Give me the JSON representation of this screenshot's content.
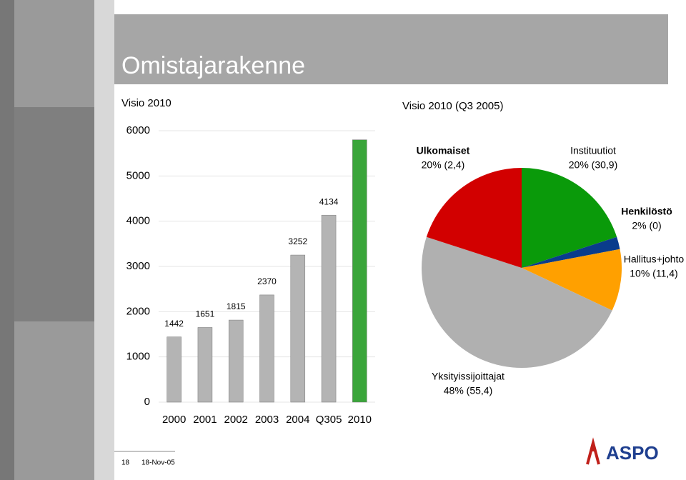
{
  "title": "Omistajarakenne",
  "chart_data": [
    {
      "type": "bar",
      "title": "Visio 2010",
      "categories": [
        "2000",
        "2001",
        "2002",
        "2003",
        "2004",
        "Q305",
        "2010"
      ],
      "values": [
        1442,
        1651,
        1815,
        2370,
        3252,
        4134,
        5800
      ],
      "value_labels": [
        "1442",
        "1651",
        "1815",
        "2370",
        "3252",
        "4134",
        null
      ],
      "colors": [
        "#b4b4b4",
        "#b4b4b4",
        "#b4b4b4",
        "#b4b4b4",
        "#b4b4b4",
        "#b4b4b4",
        "#3aa53a"
      ],
      "ylim": [
        0,
        6000
      ],
      "yticks": [
        0,
        1000,
        2000,
        3000,
        4000,
        5000,
        6000
      ],
      "grid": true
    },
    {
      "type": "pie",
      "title": "Visio 2010 (Q3 2005)",
      "categories": [
        "Instituutiot",
        "Henkilöstö",
        "Hallitus+johto",
        "Yksityissijoittajat",
        "Ulkomaiset"
      ],
      "values": [
        20,
        2,
        10,
        48,
        20
      ],
      "value_labels": [
        "20% (30,9)",
        "2% (0)",
        "10% (11,4)",
        "48% (55,4)",
        "20% (2,4)"
      ],
      "colors": [
        "#0a9a0a",
        "#0a3c8c",
        "#ffa000",
        "#b0b0b0",
        "#d20000"
      ]
    }
  ],
  "footer": {
    "page": "18",
    "date": "18-Nov-05",
    "logo": "ASPO"
  }
}
